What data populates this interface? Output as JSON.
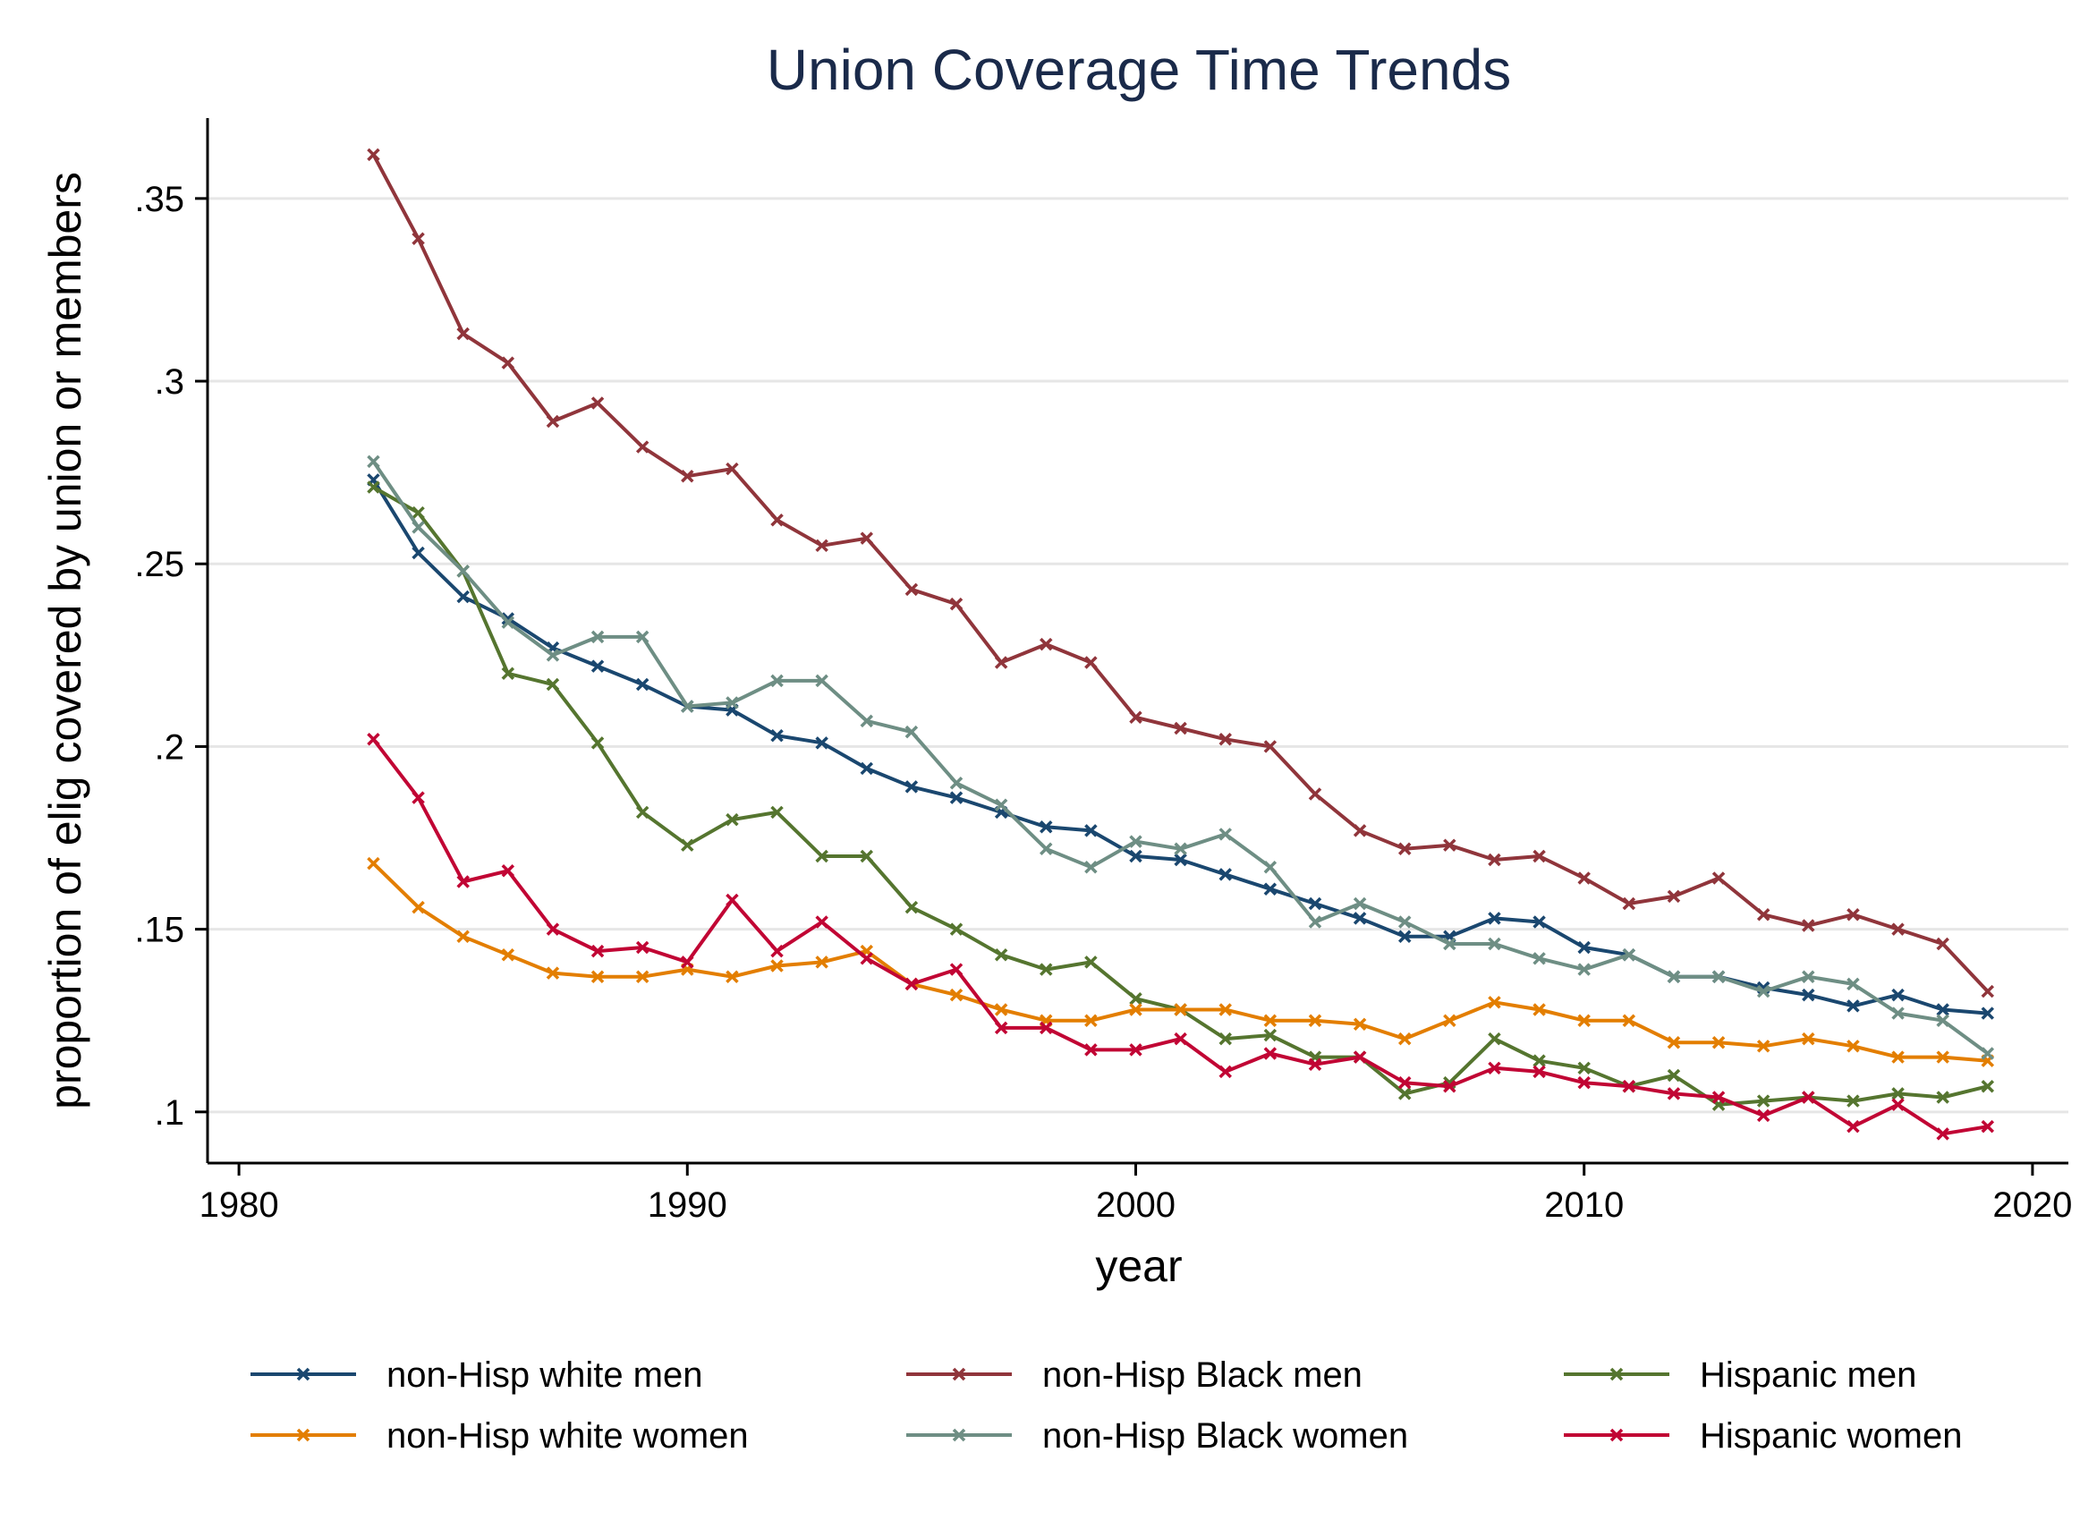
{
  "chart_data": {
    "type": "line",
    "title": "Union Coverage Time Trends",
    "xlabel": "year",
    "ylabel": "proportion of elig covered by union or members",
    "xlim": [
      1979.3,
      2020.8
    ],
    "ylim": [
      0.086,
      0.372
    ],
    "xticks": [
      1980,
      1990,
      2000,
      2010,
      2020
    ],
    "xtick_labels": [
      "1980",
      "1990",
      "2000",
      "2010",
      "2020"
    ],
    "yticks": [
      0.1,
      0.15,
      0.2,
      0.25,
      0.3,
      0.35
    ],
    "ytick_labels": [
      ".1",
      ".15",
      ".2",
      ".25",
      ".3",
      ".35"
    ],
    "grid": true,
    "legend_position": "bottom",
    "marker": "x",
    "x": [
      1983,
      1984,
      1985,
      1986,
      1987,
      1988,
      1989,
      1990,
      1991,
      1992,
      1993,
      1994,
      1995,
      1996,
      1997,
      1998,
      1999,
      2000,
      2001,
      2002,
      2003,
      2004,
      2005,
      2006,
      2007,
      2008,
      2009,
      2010,
      2011,
      2012,
      2013,
      2014,
      2015,
      2016,
      2017,
      2018,
      2019
    ],
    "series": [
      {
        "name": "non-Hisp white men",
        "color": "#1a476f",
        "values": [
          0.273,
          0.253,
          0.241,
          0.235,
          0.227,
          0.222,
          0.217,
          0.211,
          0.21,
          0.203,
          0.201,
          0.194,
          0.189,
          0.186,
          0.182,
          0.178,
          0.177,
          0.17,
          0.169,
          0.165,
          0.161,
          0.157,
          0.153,
          0.148,
          0.148,
          0.153,
          0.152,
          0.145,
          0.143,
          0.137,
          0.137,
          0.134,
          0.132,
          0.129,
          0.132,
          0.128,
          0.127
        ]
      },
      {
        "name": "non-Hisp Black men",
        "color": "#90353b",
        "values": [
          0.362,
          0.339,
          0.313,
          0.305,
          0.289,
          0.294,
          0.282,
          0.274,
          0.276,
          0.262,
          0.255,
          0.257,
          0.243,
          0.239,
          0.223,
          0.228,
          0.223,
          0.208,
          0.205,
          0.202,
          0.2,
          0.187,
          0.177,
          0.172,
          0.173,
          0.169,
          0.17,
          0.164,
          0.157,
          0.159,
          0.164,
          0.154,
          0.151,
          0.154,
          0.15,
          0.146,
          0.133
        ]
      },
      {
        "name": "Hispanic men",
        "color": "#55752f",
        "values": [
          0.271,
          0.264,
          0.248,
          0.22,
          0.217,
          0.201,
          0.182,
          0.173,
          0.18,
          0.182,
          0.17,
          0.17,
          0.156,
          0.15,
          0.143,
          0.139,
          0.141,
          0.131,
          0.128,
          0.12,
          0.121,
          0.115,
          0.115,
          0.105,
          0.108,
          0.12,
          0.114,
          0.112,
          0.107,
          0.11,
          0.102,
          0.103,
          0.104,
          0.103,
          0.105,
          0.104,
          0.107
        ]
      },
      {
        "name": "non-Hisp white women",
        "color": "#e37e00",
        "values": [
          0.168,
          0.156,
          0.148,
          0.143,
          0.138,
          0.137,
          0.137,
          0.139,
          0.137,
          0.14,
          0.141,
          0.144,
          0.135,
          0.132,
          0.128,
          0.125,
          0.125,
          0.128,
          0.128,
          0.128,
          0.125,
          0.125,
          0.124,
          0.12,
          0.125,
          0.13,
          0.128,
          0.125,
          0.125,
          0.119,
          0.119,
          0.118,
          0.12,
          0.118,
          0.115,
          0.115,
          0.114
        ]
      },
      {
        "name": "non-Hisp Black women",
        "color": "#6e8e84",
        "values": [
          0.278,
          0.26,
          0.248,
          0.234,
          0.225,
          0.23,
          0.23,
          0.211,
          0.212,
          0.218,
          0.218,
          0.207,
          0.204,
          0.19,
          0.184,
          0.172,
          0.167,
          0.174,
          0.172,
          0.176,
          0.167,
          0.152,
          0.157,
          0.152,
          0.146,
          0.146,
          0.142,
          0.139,
          0.143,
          0.137,
          0.137,
          0.133,
          0.137,
          0.135,
          0.127,
          0.125,
          0.116
        ]
      },
      {
        "name": "Hispanic women",
        "color": "#c10534",
        "values": [
          0.202,
          0.186,
          0.163,
          0.166,
          0.15,
          0.144,
          0.145,
          0.141,
          0.158,
          0.144,
          0.152,
          0.142,
          0.135,
          0.139,
          0.123,
          0.123,
          0.117,
          0.117,
          0.12,
          0.111,
          0.116,
          0.113,
          0.115,
          0.108,
          0.107,
          0.112,
          0.111,
          0.108,
          0.107,
          0.105,
          0.104,
          0.099,
          0.104,
          0.096,
          0.102,
          0.094,
          0.096
        ]
      }
    ],
    "legend_order": [
      0,
      1,
      2,
      3,
      4,
      5
    ]
  }
}
